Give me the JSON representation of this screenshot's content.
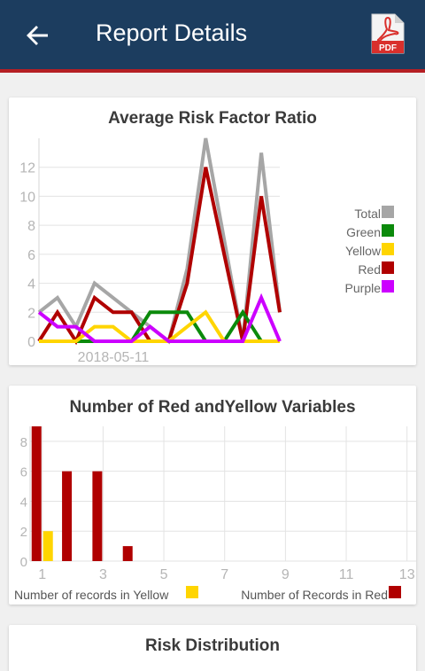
{
  "header": {
    "title": "Report Details",
    "back_icon": "arrow-left-icon",
    "pdf_icon": "pdf-icon",
    "pdf_label": "PDF"
  },
  "colors": {
    "appbar": "#1c3d5f",
    "stripe": "#b51f24",
    "total": "#a6a6a6",
    "green": "#0b8a0b",
    "yellow": "#ffd500",
    "red": "#b00000",
    "purple": "#cc00ff"
  },
  "cards": {
    "risk_factor": {
      "title": "Average Risk Factor Ratio"
    },
    "red_yellow": {
      "title": "Number of Red andYellow Variables"
    },
    "distribution": {
      "title": "Risk Distribution"
    }
  },
  "chart_data": [
    {
      "type": "line",
      "title": "Average Risk Factor Ratio",
      "x_tick_labels": [
        "2018-05-11"
      ],
      "ylim": [
        0,
        14
      ],
      "y_ticks": [
        0,
        2,
        4,
        6,
        8,
        10,
        12
      ],
      "grid": true,
      "legend": "right",
      "x": [
        0,
        1,
        2,
        3,
        4,
        5,
        6,
        7,
        8,
        9,
        10,
        11,
        12,
        13
      ],
      "series": [
        {
          "name": "Total",
          "color": "#a6a6a6",
          "values": [
            2,
            3,
            1,
            4,
            3,
            2,
            1,
            0,
            5,
            14,
            7,
            0,
            13,
            2
          ]
        },
        {
          "name": "Green",
          "color": "#0b8a0b",
          "values": [
            0,
            0,
            0,
            0,
            0,
            0,
            2,
            2,
            2,
            0,
            0,
            2,
            0,
            0
          ]
        },
        {
          "name": "Yellow",
          "color": "#ffd500",
          "values": [
            0,
            0,
            0,
            1,
            1,
            0,
            0,
            0,
            1,
            2,
            0,
            0,
            0,
            0
          ]
        },
        {
          "name": "Red",
          "color": "#b00000",
          "values": [
            0,
            2,
            0,
            3,
            2,
            2,
            0,
            0,
            4,
            12,
            6,
            0,
            10,
            2
          ]
        },
        {
          "name": "Purple",
          "color": "#cc00ff",
          "values": [
            2,
            1,
            1,
            0,
            0,
            0,
            1,
            0,
            0,
            0,
            0,
            0,
            3,
            0
          ]
        }
      ]
    },
    {
      "type": "bar",
      "title": "Number of Red andYellow Variables",
      "categories": [
        1,
        2,
        3,
        4
      ],
      "x_ticks": [
        1,
        3,
        5,
        7,
        9,
        11,
        13
      ],
      "xlim": [
        0.6,
        13.3
      ],
      "ylim": [
        0,
        9
      ],
      "y_ticks": [
        0,
        2,
        4,
        6,
        8
      ],
      "grid": true,
      "legend": "bottom",
      "series": [
        {
          "name": "Number of Records in Red",
          "color": "#b00000",
          "values": [
            9,
            6,
            6,
            1
          ]
        },
        {
          "name": "Number of records in Yellow",
          "color": "#ffd500",
          "values": [
            2,
            0,
            0,
            0
          ]
        }
      ]
    }
  ]
}
